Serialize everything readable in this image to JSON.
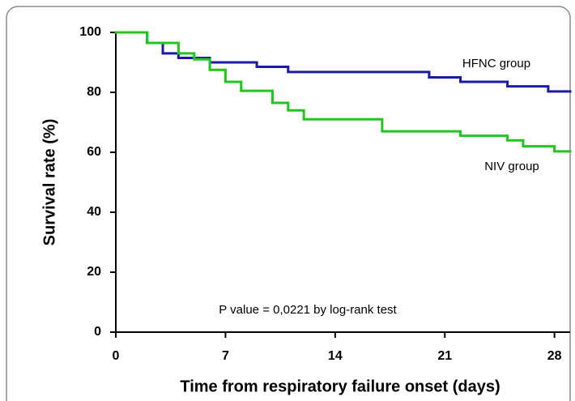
{
  "chart_data": {
    "type": "step",
    "x_label": "Time from respiratory failure onset (days)",
    "y_label": "Survival rate (%)",
    "xlim": [
      0,
      29
    ],
    "ylim": [
      0,
      100
    ],
    "xticks": [
      0,
      7,
      14,
      21,
      28
    ],
    "yticks": [
      0,
      20,
      40,
      60,
      80,
      100
    ],
    "annotations": [
      "HFNC group",
      "NIV group",
      "P value = 0,0221 by log-rank test"
    ],
    "series": [
      {
        "name": "HFNC group",
        "color": "#1a1aa6",
        "x": [
          0,
          2,
          3,
          4,
          6,
          9,
          11,
          20,
          22,
          25,
          27.6,
          29
        ],
        "values": [
          100,
          96.5,
          93,
          91.5,
          90,
          88.5,
          86.8,
          85,
          83.5,
          82,
          80.3,
          80.3
        ]
      },
      {
        "name": "NIV group",
        "color": "#22c41e",
        "x": [
          0,
          2,
          4,
          5,
          6,
          7,
          8,
          10,
          11,
          12,
          17,
          22,
          25,
          26,
          28,
          29
        ],
        "values": [
          100,
          96.5,
          93,
          91,
          87.5,
          83.5,
          80.5,
          76.5,
          74,
          71,
          67,
          65.5,
          64,
          62,
          60.3,
          60.3
        ]
      }
    ]
  }
}
